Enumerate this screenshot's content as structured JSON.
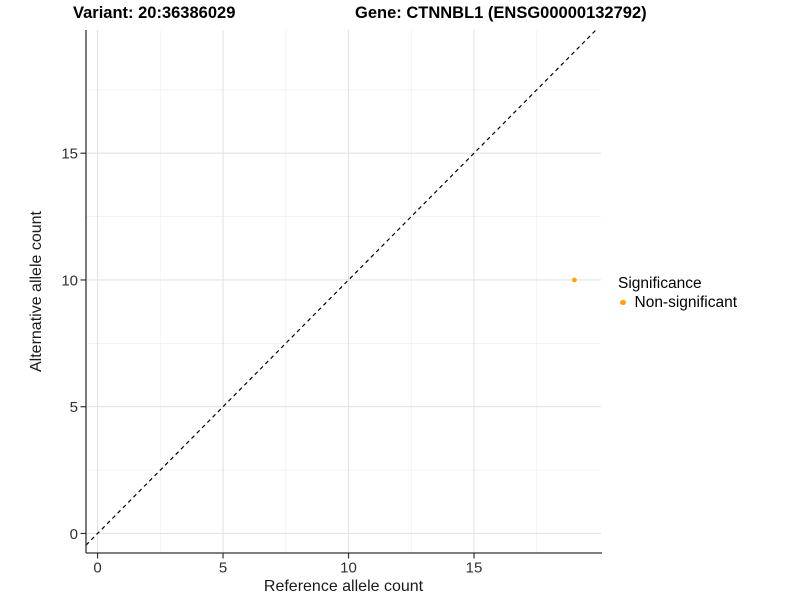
{
  "chart_data": {
    "type": "scatter",
    "titles": {
      "left": "Variant: 20:36386029",
      "right": "Gene: CTNNBL1 (ENSG00000132792)"
    },
    "xlabel": "Reference allele count",
    "ylabel": "Alternative allele count",
    "x_ticks": [
      0,
      5,
      10,
      15
    ],
    "y_ticks": [
      0,
      5,
      10,
      15
    ],
    "xlim": [
      -0.46,
      20.06
    ],
    "ylim": [
      -0.77,
      19.86
    ],
    "grid": {
      "major": true,
      "minor": true
    },
    "reference_line": {
      "kind": "identity",
      "style": "dashed",
      "color": "#000000"
    },
    "series": [
      {
        "name": "Non-significant",
        "color": "#FFA500",
        "points": [
          {
            "x": 19,
            "y": 10
          }
        ],
        "point_radius": 2.4
      }
    ],
    "legend": {
      "title": "Significance",
      "position": "right",
      "entries": [
        {
          "label": "Non-significant",
          "color": "#FFA500"
        }
      ]
    }
  },
  "colors": {
    "background": "#FFFFFF",
    "grid_major": "#E3E3E3",
    "grid_minor": "#F1F1F1",
    "axis": "#333333",
    "tick_label": "#303030",
    "axis_title": "#1A1A1A",
    "title_text": "#000000"
  }
}
